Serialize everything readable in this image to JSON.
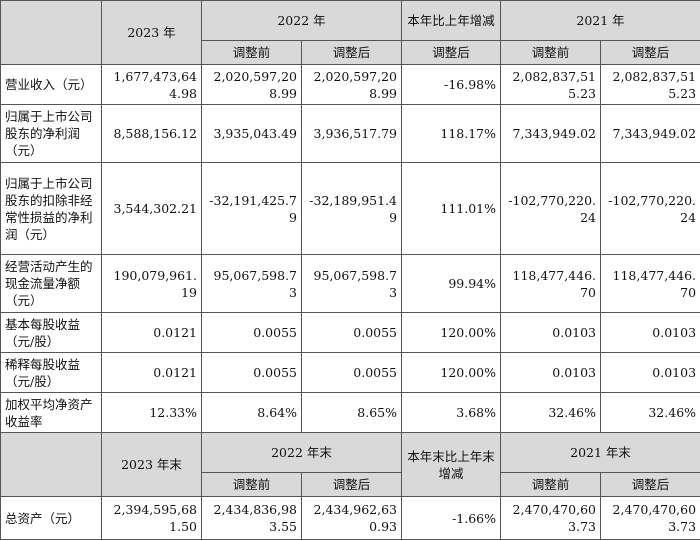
{
  "header_top": {
    "y2023": "2023 年",
    "y2022": "2022 年",
    "yoy": "本年比上年增减",
    "y2021": "2021 年",
    "before": "调整前",
    "after": "调整后",
    "yoy_after": "调整后"
  },
  "rows": [
    {
      "label": "营业收入（元）",
      "v2023": "1,677,473,644.98",
      "v2022_before": "2,020,597,208.99",
      "v2022_after": "2,020,597,208.99",
      "yoy": "-16.98%",
      "v2021_before": "2,082,837,515.23",
      "v2021_after": "2,082,837,515.23"
    },
    {
      "label": "归属于上市公司股东的净利润（元）",
      "v2023": "8,588,156.12",
      "v2022_before": "3,935,043.49",
      "v2022_after": "3,936,517.79",
      "yoy": "118.17%",
      "v2021_before": "7,343,949.02",
      "v2021_after": "7,343,949.02"
    },
    {
      "label": "归属于上市公司股东的扣除非经常性损益的净利润（元）",
      "v2023": "3,544,302.21",
      "v2022_before": "-32,191,425.79",
      "v2022_after": "-32,189,951.49",
      "yoy": "111.01%",
      "v2021_before": "-102,770,220.24",
      "v2021_after": "-102,770,220.24"
    },
    {
      "label": "经营活动产生的现金流量净额（元）",
      "v2023": "190,079,961.19",
      "v2022_before": "95,067,598.73",
      "v2022_after": "95,067,598.73",
      "yoy": "99.94%",
      "v2021_before": "118,477,446.70",
      "v2021_after": "118,477,446.70"
    },
    {
      "label": "基本每股收益（元/股）",
      "v2023": "0.0121",
      "v2022_before": "0.0055",
      "v2022_after": "0.0055",
      "yoy": "120.00%",
      "v2021_before": "0.0103",
      "v2021_after": "0.0103"
    },
    {
      "label": "稀释每股收益（元/股）",
      "v2023": "0.0121",
      "v2022_before": "0.0055",
      "v2022_after": "0.0055",
      "yoy": "120.00%",
      "v2021_before": "0.0103",
      "v2021_after": "0.0103"
    },
    {
      "label": "加权平均净资产收益率",
      "v2023": "12.33%",
      "v2022_before": "8.64%",
      "v2022_after": "8.65%",
      "yoy": "3.68%",
      "v2021_before": "32.46%",
      "v2021_after": "32.46%"
    }
  ],
  "header_bottom": {
    "y2023": "2023 年末",
    "y2022": "2022 年末",
    "yoy": "本年末比上年末增减",
    "y2021": "2021 年末",
    "before": "调整前",
    "after": "调整后"
  },
  "asset_row": {
    "label": "总资产（元）",
    "v2023": "2,394,595,681.50",
    "v2022_before": "2,434,836,983.55",
    "v2022_after": "2,434,962,630.93",
    "yoy": "-1.66%",
    "v2021_before": "2,470,470,603.73",
    "v2021_after": "2,470,470,603.73"
  }
}
